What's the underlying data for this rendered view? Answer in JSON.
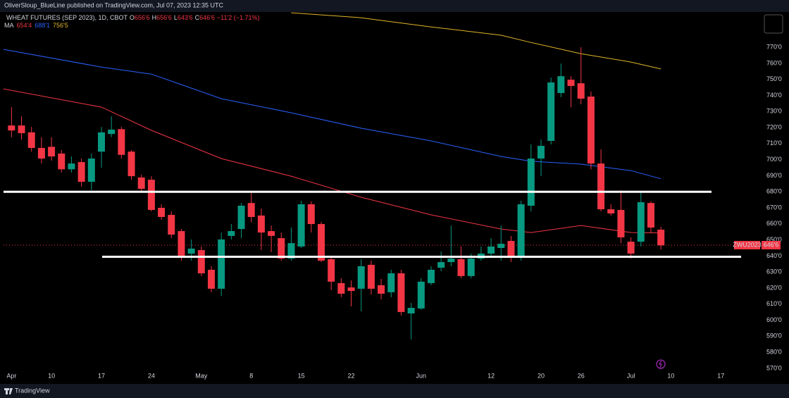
{
  "header": {
    "publisher": "OliverSloup_BlueLine published on TradingView.com, Jul 07, 2023 12:35 UTC",
    "symbol": "WHEAT FUTURES (SEP 2023), 1D, CBOT",
    "ohlc": [
      {
        "key": "O",
        "value": "656'6"
      },
      {
        "key": "H",
        "value": "656'6"
      },
      {
        "key": "L",
        "value": "643'6"
      },
      {
        "key": "C",
        "value": "646'6"
      }
    ],
    "change": "−11'2 (−1.71%)"
  },
  "footer": {
    "brand": "TradingView"
  },
  "chart_data": {
    "type": "candlestick",
    "up_color": "#089981",
    "down_color": "#f23645",
    "grid": false,
    "open": [
      721.3,
      721.3,
      717,
      707.3,
      708,
      703.8,
      694,
      698.5,
      686.2,
      705,
      716,
      719,
      705,
      688.9,
      687.5,
      670,
      665.6,
      655.5,
      641.5,
      643.7,
      631.4,
      619.6,
      652.5,
      656.8,
      673,
      665.2,
      655.5,
      651.1,
      638.4,
      645.9,
      672.2,
      659.9,
      638,
      623.1,
      620.4,
      619.6,
      634.5,
      621.8,
      617.4,
      629.2,
      604.2,
      607.3,
      623.1,
      632.7,
      636.2,
      638,
      627.5,
      638.4,
      641.5,
      645,
      649.4,
      639.3,
      671.3,
      700.7,
      711.7,
      741.5,
      749.8,
      747.6,
      739.3,
      697.6,
      669.1,
      668.7,
      648.9,
      648.9,
      673,
      656.4
    ],
    "high": [
      732.7,
      727,
      720.4,
      714,
      714,
      706,
      702,
      700.7,
      703.8,
      720.4,
      727,
      720.4,
      706,
      690.6,
      689.7,
      672.2,
      667.8,
      656.8,
      650.3,
      645.9,
      633.6,
      654.6,
      659.9,
      673,
      680.1,
      669.6,
      659,
      654.6,
      657.7,
      674.4,
      674,
      661.2,
      640.2,
      626.1,
      624.8,
      638,
      637.1,
      625.7,
      631.4,
      631.4,
      610.8,
      626.1,
      633.6,
      642.8,
      659,
      645.9,
      641.5,
      645.9,
      651.1,
      659,
      652.5,
      674.4,
      709.5,
      712.5,
      751.1,
      759.9,
      752,
      770,
      742.4,
      706.4,
      672.2,
      681,
      651.6,
      680.1,
      674,
      658.2
    ],
    "low": [
      714,
      712.5,
      705,
      697.6,
      699.4,
      692,
      692,
      683.2,
      681,
      695,
      714,
      700.7,
      687.5,
      680,
      667.8,
      662.5,
      651.1,
      637.1,
      637.1,
      627.5,
      617.4,
      615,
      650.3,
      651.1,
      661,
      643.7,
      642.4,
      637.1,
      637.1,
      645,
      654.6,
      636.2,
      618.7,
      614.3,
      608.6,
      605.5,
      616,
      613,
      614.3,
      602.9,
      588,
      606.4,
      621.8,
      630.5,
      633.6,
      626.1,
      626.1,
      637.1,
      640.2,
      637.1,
      636.2,
      637.1,
      667.8,
      689.7,
      709.5,
      738.9,
      732.7,
      734.5,
      694,
      667.8,
      665.2,
      648,
      638.4,
      645.9,
      654.6,
      644.1
    ],
    "close": [
      718.2,
      716.5,
      707.3,
      700.7,
      702,
      694,
      697.6,
      686.2,
      700.7,
      717,
      718.7,
      703,
      689.7,
      681.8,
      668.7,
      664.3,
      653.3,
      640.2,
      644.6,
      629.2,
      619.6,
      650.3,
      655.5,
      671.3,
      664.3,
      654.6,
      652.5,
      638.4,
      648,
      672.2,
      659.9,
      637.1,
      624,
      616.5,
      618.2,
      633.6,
      619.6,
      616.5,
      629.2,
      605.1,
      607.7,
      624,
      631.4,
      636.2,
      638.4,
      627.5,
      638.4,
      641.5,
      645.9,
      647.6,
      639.3,
      672.2,
      700.7,
      708.6,
      748.1,
      752,
      745.9,
      738,
      697.6,
      669.1,
      666.5,
      651.6,
      641.5,
      673.5,
      657.7,
      646.6
    ],
    "xlim": [
      -0.8,
      75
    ],
    "xticks": [
      {
        "value": 0,
        "label": "Apr"
      },
      {
        "value": 4,
        "label": "10"
      },
      {
        "value": 9,
        "label": "17"
      },
      {
        "value": 14,
        "label": "24"
      },
      {
        "value": 19,
        "label": "May"
      },
      {
        "value": 24,
        "label": "8"
      },
      {
        "value": 29,
        "label": "15"
      },
      {
        "value": 34,
        "label": "22"
      },
      {
        "value": 41,
        "label": "Jun"
      },
      {
        "value": 48,
        "label": "12"
      },
      {
        "value": 53,
        "label": "20"
      },
      {
        "value": 57,
        "label": "26"
      },
      {
        "value": 62,
        "label": "Jul"
      },
      {
        "value": 66,
        "label": "10"
      },
      {
        "value": 71,
        "label": "17"
      }
    ],
    "ylim": [
      562.5,
      792
    ],
    "yticks": [
      {
        "value": 570,
        "label": "570'0"
      },
      {
        "value": 580,
        "label": "580'0"
      },
      {
        "value": 590,
        "label": "590'0"
      },
      {
        "value": 600,
        "label": "600'0"
      },
      {
        "value": 610,
        "label": "610'0"
      },
      {
        "value": 620,
        "label": "620'0"
      },
      {
        "value": 630,
        "label": "630'0"
      },
      {
        "value": 640,
        "label": "640'0"
      },
      {
        "value": 650,
        "label": "650'0"
      },
      {
        "value": 660,
        "label": "660'0"
      },
      {
        "value": 670,
        "label": "670'0"
      },
      {
        "value": 680,
        "label": "680'0"
      },
      {
        "value": 690,
        "label": "690'0"
      },
      {
        "value": 700,
        "label": "700'0"
      },
      {
        "value": 710,
        "label": "710'0"
      },
      {
        "value": 720,
        "label": "720'0"
      },
      {
        "value": 730,
        "label": "730'0"
      },
      {
        "value": 740,
        "label": "740'0"
      },
      {
        "value": 750,
        "label": "750'0"
      },
      {
        "value": 760,
        "label": "760'0"
      },
      {
        "value": 770,
        "label": "770'0"
      }
    ],
    "ma": {
      "label": "MA",
      "series": [
        {
          "value_label": "654'4",
          "color": "#f23645",
          "x": [
            -0.8,
            9,
            14,
            21,
            28,
            35,
            42,
            49,
            52,
            57,
            62,
            65
          ],
          "values": [
            744.1,
            732.7,
            718.3,
            700.7,
            689.7,
            676.6,
            665.6,
            656.8,
            654.6,
            659,
            654.6,
            654.4
          ]
        },
        {
          "value_label": "688'1",
          "color": "#2962ff",
          "x": [
            -0.8,
            9,
            14,
            21,
            28,
            35,
            42,
            49,
            52,
            57,
            62,
            65
          ],
          "values": [
            768.7,
            757.7,
            753.3,
            738,
            729.2,
            719.6,
            711.7,
            702,
            699,
            697.2,
            693.2,
            688.1
          ]
        },
        {
          "value_label": "756'5",
          "color": "#e0b42a",
          "x": [
            28,
            35,
            42,
            49,
            52,
            57,
            62,
            65
          ],
          "values": [
            791.5,
            788.4,
            782.7,
            777.5,
            773,
            766,
            760.8,
            756.5
          ]
        }
      ]
    },
    "levels": [
      680,
      639.5
    ],
    "last_price": {
      "symbol": "ZWU2023",
      "value": 646.75,
      "label": "646'6"
    }
  }
}
